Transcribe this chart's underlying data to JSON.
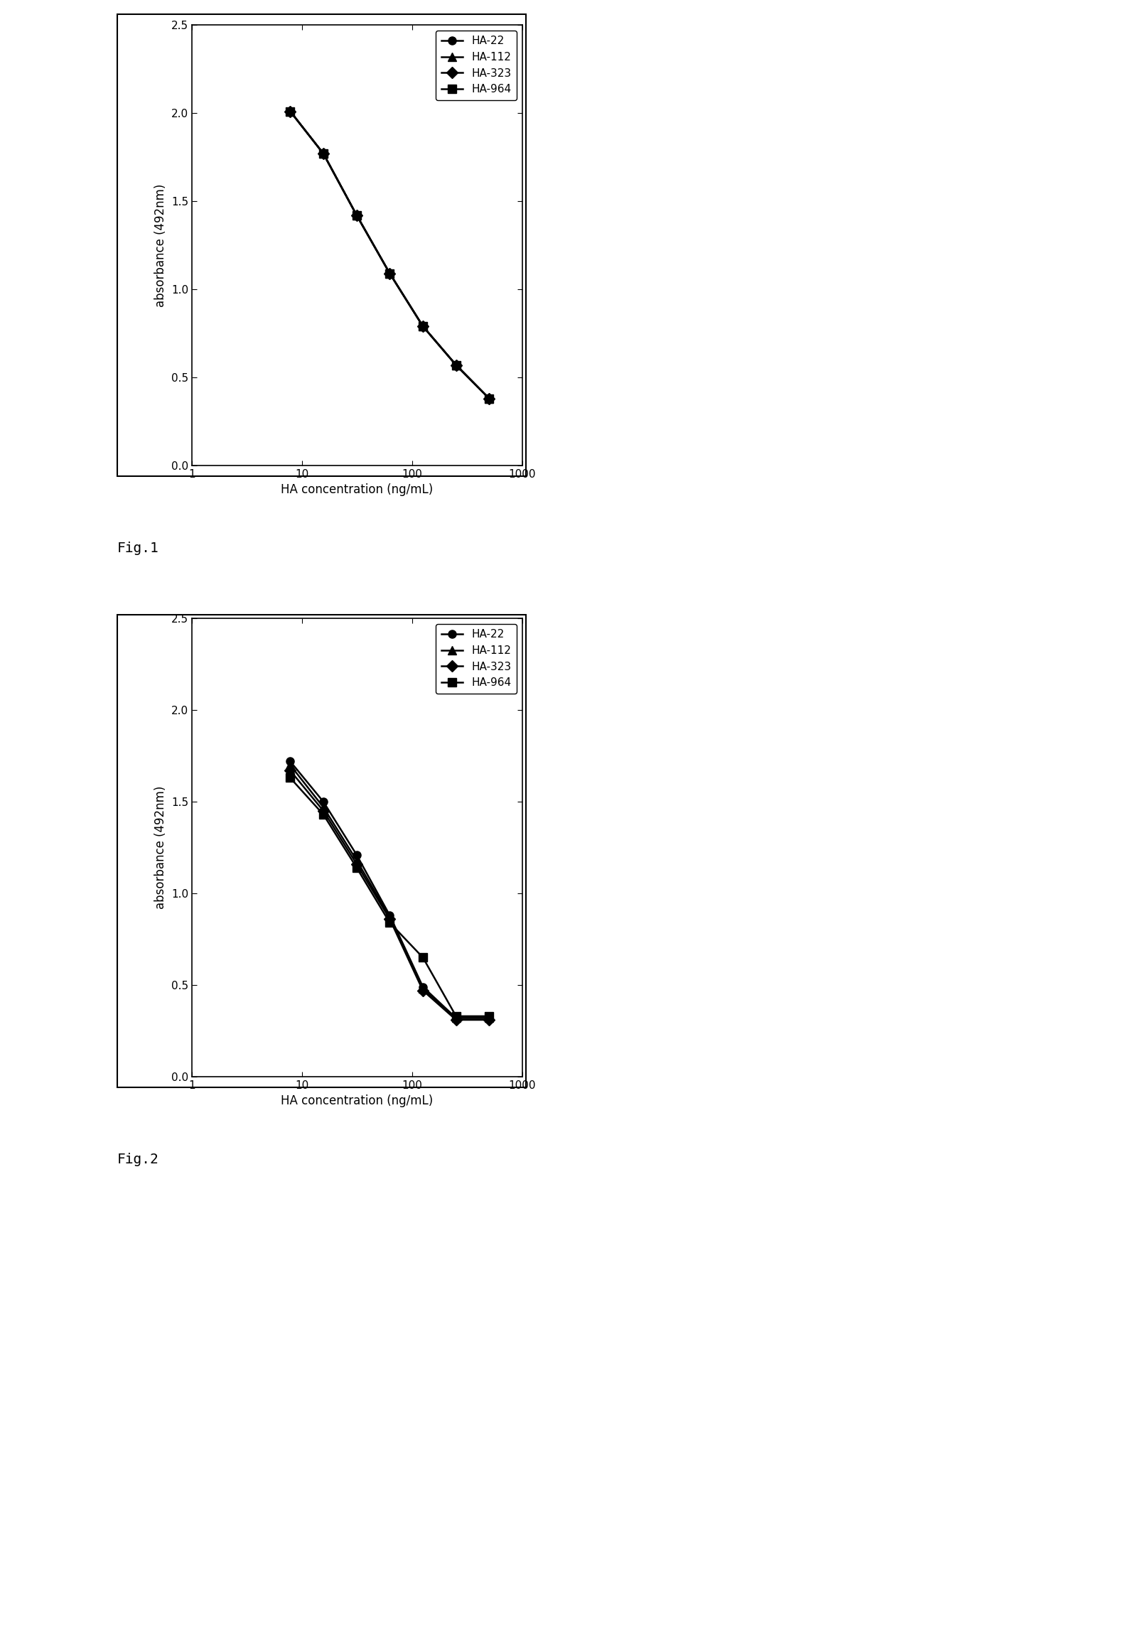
{
  "fig1": {
    "xlabel": "HA concentration (ng/mL)",
    "ylabel": "absorbance (492nm)",
    "xlim": [
      1,
      1000
    ],
    "ylim": [
      0.0,
      2.5
    ],
    "yticks": [
      0.0,
      0.5,
      1.0,
      1.5,
      2.0,
      2.5
    ],
    "xticks": [
      1,
      10,
      100,
      1000
    ],
    "series": [
      {
        "label": "HA-22",
        "x": [
          7.8,
          15.6,
          31.3,
          62.5,
          125,
          250,
          500
        ],
        "y": [
          2.01,
          1.77,
          1.42,
          1.09,
          0.79,
          0.57,
          0.38
        ],
        "marker": "o",
        "color": "#000000"
      },
      {
        "label": "HA-112",
        "x": [
          7.8,
          15.6,
          31.3,
          62.5,
          125,
          250,
          500
        ],
        "y": [
          2.01,
          1.77,
          1.42,
          1.09,
          0.79,
          0.57,
          0.38
        ],
        "marker": "^",
        "color": "#000000"
      },
      {
        "label": "HA-323",
        "x": [
          7.8,
          15.6,
          31.3,
          62.5,
          125,
          250,
          500
        ],
        "y": [
          2.01,
          1.77,
          1.42,
          1.09,
          0.79,
          0.57,
          0.38
        ],
        "marker": "D",
        "color": "#000000"
      },
      {
        "label": "HA-964",
        "x": [
          7.8,
          15.6,
          31.3,
          62.5,
          125,
          250,
          500
        ],
        "y": [
          2.01,
          1.77,
          1.42,
          1.09,
          0.79,
          0.57,
          0.38
        ],
        "marker": "s",
        "color": "#000000"
      }
    ]
  },
  "fig2": {
    "xlabel": "HA concentration (ng/mL)",
    "ylabel": "absorbance (492nm)",
    "xlim": [
      1,
      1000
    ],
    "ylim": [
      0.0,
      2.5
    ],
    "yticks": [
      0.0,
      0.5,
      1.0,
      1.5,
      2.0,
      2.5
    ],
    "xticks": [
      1,
      10,
      100,
      1000
    ],
    "series": [
      {
        "label": "HA-22",
        "x": [
          7.8,
          15.6,
          31.3,
          62.5,
          125,
          250,
          500
        ],
        "y": [
          1.72,
          1.5,
          1.21,
          0.88,
          0.49,
          0.32,
          0.32
        ],
        "marker": "o",
        "color": "#000000"
      },
      {
        "label": "HA-112",
        "x": [
          7.8,
          15.6,
          31.3,
          62.5,
          125,
          250,
          500
        ],
        "y": [
          1.7,
          1.47,
          1.18,
          0.87,
          0.48,
          0.32,
          0.32
        ],
        "marker": "^",
        "color": "#000000"
      },
      {
        "label": "HA-323",
        "x": [
          7.8,
          15.6,
          31.3,
          62.5,
          125,
          250,
          500
        ],
        "y": [
          1.67,
          1.45,
          1.16,
          0.86,
          0.47,
          0.31,
          0.31
        ],
        "marker": "D",
        "color": "#000000"
      },
      {
        "label": "HA-964",
        "x": [
          7.8,
          15.6,
          31.3,
          62.5,
          125,
          250,
          500
        ],
        "y": [
          1.63,
          1.43,
          1.14,
          0.84,
          0.65,
          0.33,
          0.33
        ],
        "marker": "s",
        "color": "#000000"
      }
    ]
  },
  "fig1_label": "Fig.1",
  "fig2_label": "Fig.2",
  "bg_color": "#ffffff",
  "linewidth": 1.8,
  "markersize": 8,
  "legend_fontsize": 11,
  "axis_label_fontsize": 12,
  "tick_fontsize": 11,
  "fig_label_fontsize": 14
}
